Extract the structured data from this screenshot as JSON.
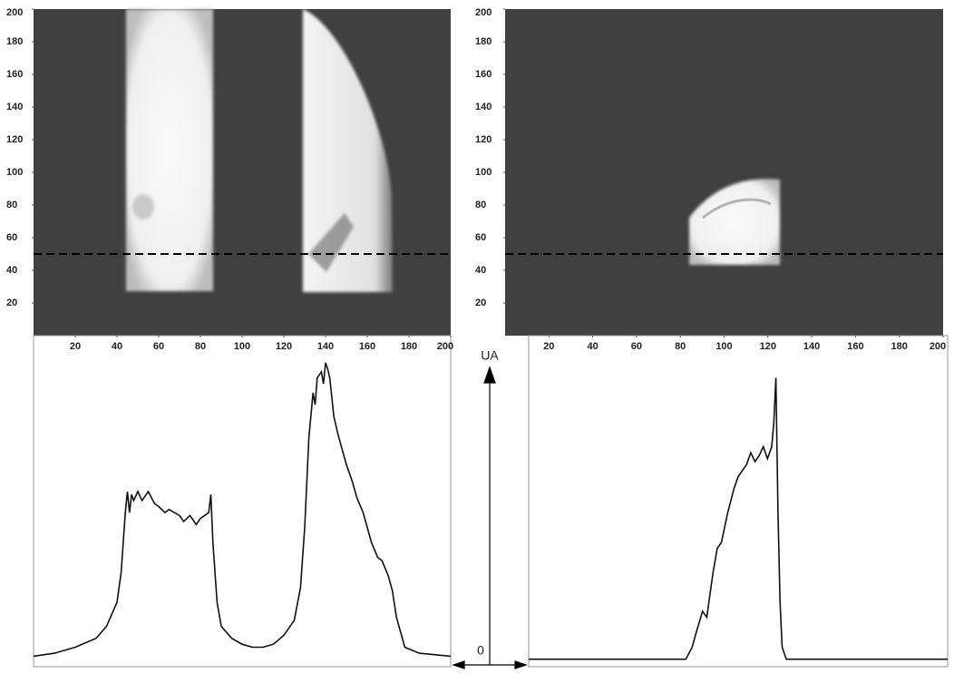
{
  "chart_data": [
    {
      "type": "image",
      "xlim": [
        0,
        200
      ],
      "ylim": [
        0,
        200
      ],
      "xticks": [
        20,
        40,
        60,
        80,
        100,
        120,
        140,
        160,
        180,
        200
      ],
      "yticks": [
        20,
        40,
        60,
        80,
        100,
        120,
        140,
        160,
        180,
        200
      ],
      "profile_row": 50
    },
    {
      "type": "image",
      "xlim": [
        0,
        200
      ],
      "ylim": [
        0,
        200
      ],
      "xticks": [
        20,
        40,
        60,
        80,
        100,
        120,
        140,
        160,
        180,
        200
      ],
      "yticks": [
        20,
        40,
        60,
        80,
        100,
        120,
        140,
        160,
        180,
        200
      ],
      "profile_row": 50
    },
    {
      "type": "line",
      "xlim": [
        0,
        200
      ],
      "ylim": [
        0,
        100
      ],
      "ylabel": "UA",
      "yticks": [
        0
      ],
      "color": "#111111",
      "x": [
        0,
        10,
        20,
        30,
        35,
        40,
        42,
        44,
        45,
        46,
        47,
        48,
        50,
        52,
        55,
        58,
        60,
        63,
        65,
        70,
        72,
        75,
        78,
        80,
        84,
        85,
        86,
        88,
        90,
        95,
        100,
        105,
        110,
        115,
        120,
        125,
        128,
        130,
        132,
        134,
        135,
        136,
        138,
        139,
        140,
        141,
        142,
        144,
        146,
        150,
        153,
        155,
        158,
        160,
        162,
        165,
        167,
        170,
        172,
        174,
        178,
        185,
        200
      ],
      "values": [
        2,
        3,
        5,
        8,
        12,
        20,
        30,
        50,
        57,
        50,
        56,
        54,
        57,
        54,
        57,
        53,
        52,
        50,
        51,
        49,
        47,
        49,
        46,
        48,
        50,
        56,
        40,
        20,
        12,
        8,
        6,
        5,
        5,
        6,
        9,
        14,
        25,
        45,
        75,
        90,
        86,
        95,
        97,
        93,
        100,
        98,
        95,
        82,
        76,
        66,
        60,
        55,
        50,
        45,
        40,
        35,
        34,
        29,
        24,
        15,
        5,
        3,
        2
      ]
    },
    {
      "type": "line",
      "xlim": [
        0,
        200
      ],
      "ylim": [
        0,
        100
      ],
      "color": "#111111",
      "x": [
        0,
        30,
        60,
        75,
        78,
        80,
        83,
        85,
        86,
        88,
        90,
        92,
        95,
        98,
        100,
        104,
        106,
        108,
        110,
        112,
        114,
        116,
        117,
        118,
        119,
        120,
        121,
        123,
        150,
        200
      ],
      "values": [
        1,
        1,
        1,
        1,
        5,
        10,
        17,
        15,
        20,
        30,
        38,
        40,
        50,
        58,
        62,
        66,
        70,
        67,
        69,
        72,
        68,
        72,
        80,
        95,
        50,
        20,
        5,
        1,
        1,
        1
      ]
    }
  ]
}
